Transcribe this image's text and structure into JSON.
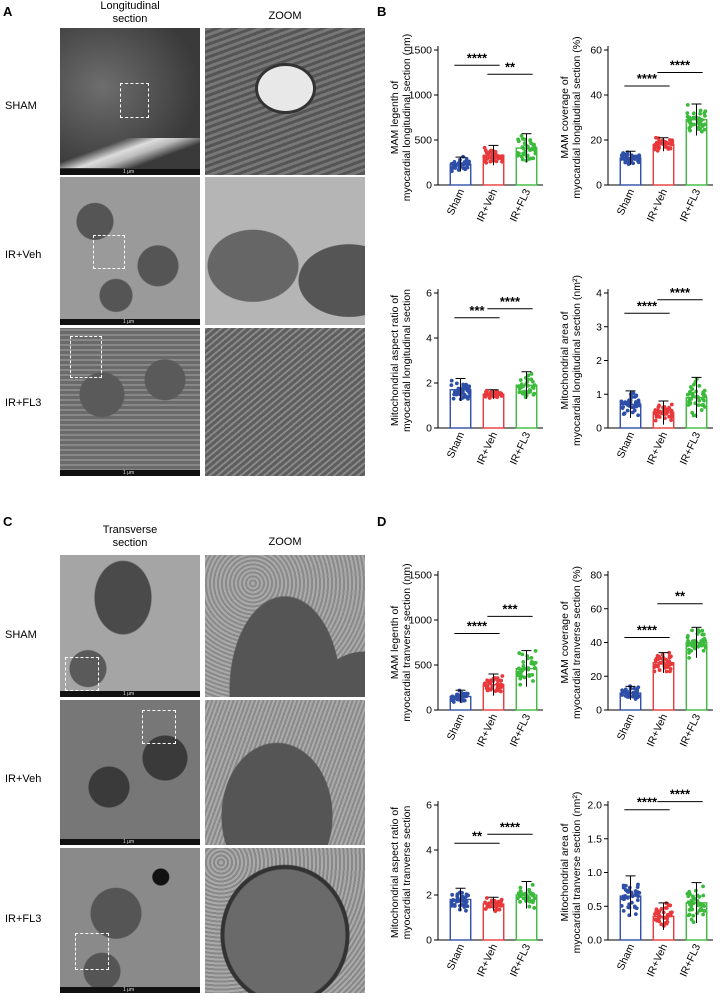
{
  "panels": {
    "A": {
      "letter": "A",
      "col1": "Longitudinal\nsection",
      "col2": "ZOOM",
      "rows": [
        "SHAM",
        "IR+Veh",
        "IR+FL3"
      ]
    },
    "B": {
      "letter": "B"
    },
    "C": {
      "letter": "C",
      "col1": "Transverse\nsection",
      "col2": "ZOOM",
      "rows": [
        "SHAM",
        "IR+Veh",
        "IR+FL3"
      ]
    },
    "D": {
      "letter": "D"
    }
  },
  "scale_text": "1 μm",
  "colors": {
    "sham": "#2e4fa8",
    "veh": "#e8383a",
    "fl3": "#3cba3c"
  },
  "chart_data": [
    {
      "type": "bar",
      "panel": "B",
      "ylabel": [
        "MAM legenth of",
        "myocardial longitudinal section (nm)"
      ],
      "categories": [
        "Sham",
        "IR+Veh",
        "IR+FL3"
      ],
      "values": [
        230,
        330,
        410
      ],
      "errors": [
        80,
        110,
        160
      ],
      "ylim": [
        0,
        1500
      ],
      "yticks": [
        0,
        500,
        1000,
        1500
      ],
      "sig": [
        {
          "from": 0,
          "to": 1,
          "label": "****",
          "y": 1330
        },
        {
          "from": 1,
          "to": 2,
          "label": "**",
          "y": 1230
        }
      ]
    },
    {
      "type": "bar",
      "panel": "B",
      "ylabel": [
        "MAM coverage of",
        "myocardial longitudinal section (%)"
      ],
      "categories": [
        "Sham",
        "IR+Veh",
        "IR+FL3"
      ],
      "values": [
        12,
        18,
        29
      ],
      "errors": [
        3,
        3,
        7
      ],
      "ylim": [
        0,
        60
      ],
      "yticks": [
        0,
        20,
        40,
        60
      ],
      "sig": [
        {
          "from": 0,
          "to": 1,
          "label": "****",
          "y": 44
        },
        {
          "from": 1,
          "to": 2,
          "label": "****",
          "y": 50
        }
      ]
    },
    {
      "type": "bar",
      "panel": "B",
      "ylabel": [
        "Mitochondrial aspect ratio of",
        "myocardial longitudinal section"
      ],
      "categories": [
        "Sham",
        "IR+Veh",
        "IR+FL3"
      ],
      "values": [
        1.7,
        1.5,
        1.9
      ],
      "errors": [
        0.5,
        0.2,
        0.6
      ],
      "ylim": [
        0,
        6
      ],
      "yticks": [
        0,
        2,
        4,
        6
      ],
      "sig": [
        {
          "from": 0,
          "to": 1,
          "label": "***",
          "y": 4.9
        },
        {
          "from": 1,
          "to": 2,
          "label": "****",
          "y": 5.3
        }
      ]
    },
    {
      "type": "bar",
      "panel": "B",
      "ylabel": [
        "Mitochondrial area of",
        "myocardial longitudinal section (nm²)"
      ],
      "categories": [
        "Sham",
        "IR+Veh",
        "IR+FL3"
      ],
      "values": [
        0.7,
        0.45,
        0.9
      ],
      "errors": [
        0.4,
        0.35,
        0.6
      ],
      "ylim": [
        0,
        4
      ],
      "yticks": [
        0,
        1,
        2,
        3,
        4
      ],
      "sig": [
        {
          "from": 0,
          "to": 1,
          "label": "****",
          "y": 3.4
        },
        {
          "from": 1,
          "to": 2,
          "label": "****",
          "y": 3.8
        }
      ]
    },
    {
      "type": "bar",
      "panel": "D",
      "ylabel": [
        "MAM legenth of",
        "myocardial tranverse section (nm)"
      ],
      "categories": [
        "Sham",
        "IR+Veh",
        "IR+FL3"
      ],
      "values": [
        150,
        280,
        460
      ],
      "errors": [
        70,
        120,
        200
      ],
      "ylim": [
        0,
        1500
      ],
      "yticks": [
        0,
        500,
        1000,
        1500
      ],
      "sig": [
        {
          "from": 0,
          "to": 1,
          "label": "****",
          "y": 850
        },
        {
          "from": 1,
          "to": 2,
          "label": "***",
          "y": 1040
        }
      ]
    },
    {
      "type": "bar",
      "panel": "D",
      "ylabel": [
        "MAM coverage of",
        "myocardial tranverse section (%)"
      ],
      "categories": [
        "Sham",
        "IR+Veh",
        "IR+FL3"
      ],
      "values": [
        10,
        28,
        40
      ],
      "errors": [
        4,
        6,
        9
      ],
      "ylim": [
        0,
        80
      ],
      "yticks": [
        0,
        20,
        40,
        60,
        80
      ],
      "sig": [
        {
          "from": 0,
          "to": 1,
          "label": "****",
          "y": 43
        },
        {
          "from": 1,
          "to": 2,
          "label": "**",
          "y": 63
        }
      ]
    },
    {
      "type": "bar",
      "panel": "D",
      "ylabel": [
        "Mitochondrial aspect ratio of",
        "myocardial tranverse section"
      ],
      "categories": [
        "Sham",
        "IR+Veh",
        "IR+FL3"
      ],
      "values": [
        1.8,
        1.6,
        2.0
      ],
      "errors": [
        0.5,
        0.3,
        0.6
      ],
      "ylim": [
        0,
        6
      ],
      "yticks": [
        0,
        2,
        4,
        6
      ],
      "sig": [
        {
          "from": 0,
          "to": 1,
          "label": "**",
          "y": 4.3
        },
        {
          "from": 1,
          "to": 2,
          "label": "****",
          "y": 4.7
        }
      ]
    },
    {
      "type": "bar",
      "panel": "D",
      "ylabel": [
        "Mitochondrial area of",
        "myocardial tranverse section (nm²)"
      ],
      "categories": [
        "Sham",
        "IR+Veh",
        "IR+FL3"
      ],
      "values": [
        0.65,
        0.35,
        0.55
      ],
      "errors": [
        0.3,
        0.2,
        0.3
      ],
      "ylim": [
        0,
        2.0
      ],
      "yticks": [
        0.0,
        0.5,
        1.0,
        1.5,
        2.0
      ],
      "sig": [
        {
          "from": 0,
          "to": 1,
          "label": "****",
          "y": 1.93
        },
        {
          "from": 1,
          "to": 2,
          "label": "****",
          "y": 2.05
        }
      ]
    }
  ]
}
